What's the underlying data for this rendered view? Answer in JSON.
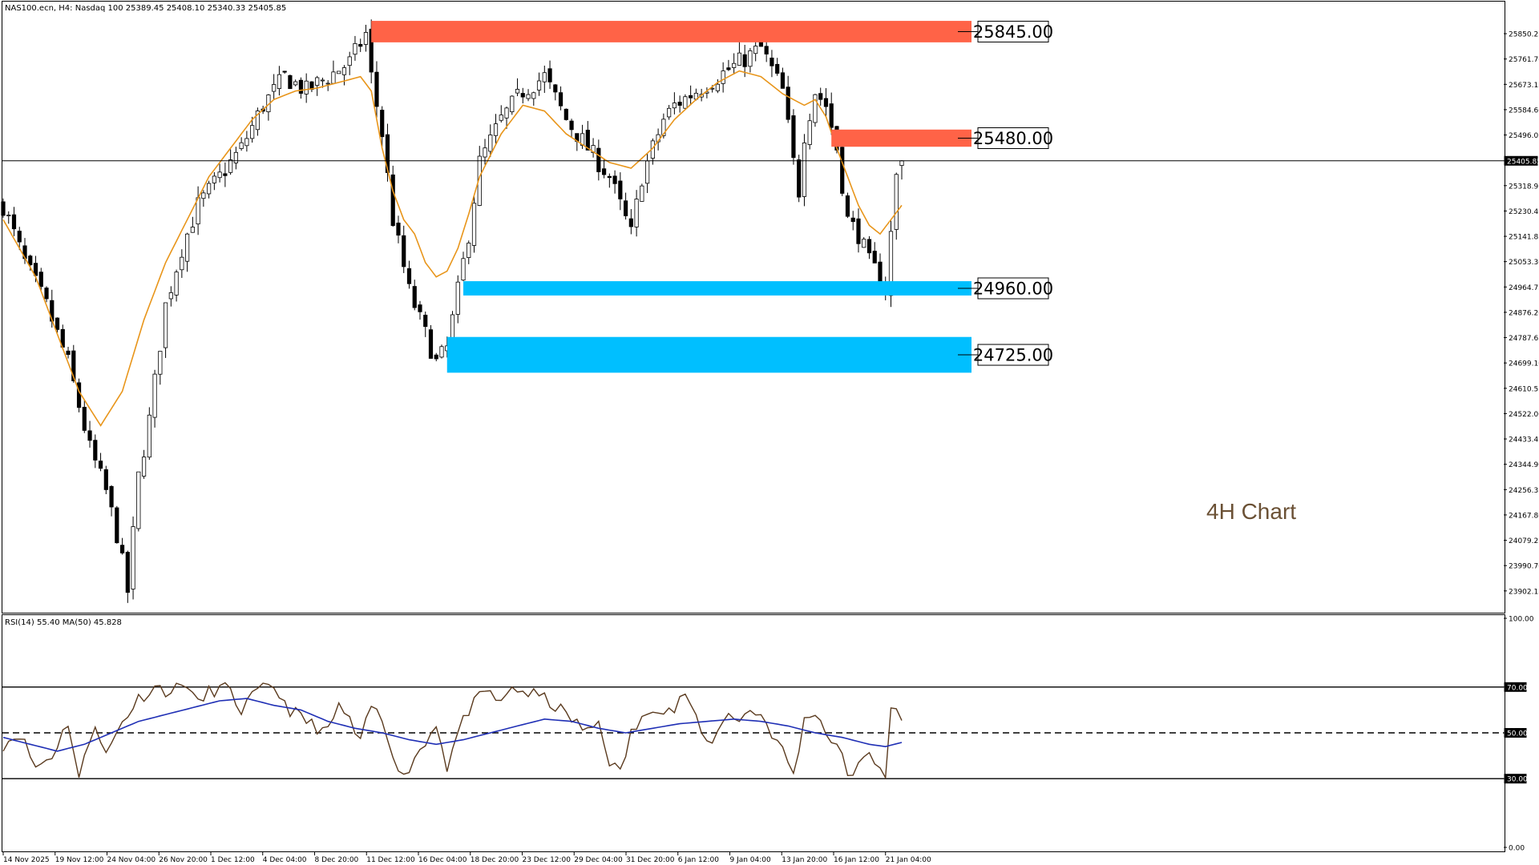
{
  "header": {
    "main_info": "NAS100.ecn, H4:  Nasdaq 100  25389.45 25408.10 25340.33 25405.85",
    "rsi_info": "RSI(14) 55.40 MA(50) 45.828"
  },
  "annotation": "4H Chart",
  "colors": {
    "candle": "#000000",
    "ma_price": "#e8951a",
    "rsi_line": "#5a3a1e",
    "rsi_ma": "#1f2fb5",
    "resistance_zone": "#ff6347",
    "support_zone": "#00bfff"
  },
  "chart_data": [
    {
      "type": "candlestick",
      "symbol": "NAS100.ecn",
      "timeframe": "H4",
      "title": "Nasdaq 100",
      "last_bar": {
        "open": 25389.45,
        "high": 25408.1,
        "low": 25340.33,
        "close": 25405.85
      },
      "current_price": 25405.85,
      "ylim": [
        23840,
        25940
      ],
      "y_ticks": [
        "25850.25",
        "25761.70",
        "25673.15",
        "25584.60",
        "25496.05",
        "25405.85",
        "25318.95",
        "25230.40",
        "25141.85",
        "25053.30",
        "24964.75",
        "24876.20",
        "24787.65",
        "24699.10",
        "24610.55",
        "24522.00",
        "24433.45",
        "24344.90",
        "24256.35",
        "24167.80",
        "24079.25",
        "23990.70",
        "23902.15"
      ],
      "x_ticks": [
        "14 Nov 2025",
        "19 Nov 12:00",
        "24 Nov 04:00",
        "26 Nov 20:00",
        "1 Dec 12:00",
        "4 Dec 04:00",
        "8 Dec 20:00",
        "11 Dec 12:00",
        "16 Dec 04:00",
        "18 Dec 20:00",
        "23 Dec 12:00",
        "29 Dec 04:00",
        "31 Dec 20:00",
        "6 Jan 12:00",
        "9 Jan 04:00",
        "13 Jan 20:00",
        "16 Jan 12:00",
        "21 Jan 04:00"
      ],
      "close_path": [
        [
          0,
          25250
        ],
        [
          4,
          25050
        ],
        [
          8,
          24900
        ],
        [
          12,
          24700
        ],
        [
          16,
          24400
        ],
        [
          19,
          24250
        ],
        [
          21,
          24100
        ],
        [
          23,
          23900
        ],
        [
          25,
          24300
        ],
        [
          27,
          24500
        ],
        [
          30,
          24900
        ],
        [
          33,
          25100
        ],
        [
          36,
          25250
        ],
        [
          40,
          25350
        ],
        [
          44,
          25450
        ],
        [
          48,
          25600
        ],
        [
          52,
          25700
        ],
        [
          56,
          25650
        ],
        [
          60,
          25700
        ],
        [
          64,
          25750
        ],
        [
          67,
          25850
        ],
        [
          68,
          25700
        ],
        [
          70,
          25500
        ],
        [
          72,
          25200
        ],
        [
          75,
          24950
        ],
        [
          78,
          24800
        ],
        [
          80,
          24700
        ],
        [
          82,
          24750
        ],
        [
          84,
          24950
        ],
        [
          86,
          25150
        ],
        [
          88,
          25400
        ],
        [
          92,
          25550
        ],
        [
          96,
          25650
        ],
        [
          100,
          25700
        ],
        [
          104,
          25550
        ],
        [
          108,
          25450
        ],
        [
          112,
          25350
        ],
        [
          114,
          25250
        ],
        [
          116,
          25150
        ],
        [
          118,
          25350
        ],
        [
          120,
          25450
        ],
        [
          122,
          25550
        ],
        [
          124,
          25600
        ],
        [
          128,
          25650
        ],
        [
          132,
          25700
        ],
        [
          136,
          25750
        ],
        [
          140,
          25800
        ],
        [
          144,
          25650
        ],
        [
          146,
          25400
        ],
        [
          147,
          25300
        ],
        [
          148,
          25500
        ],
        [
          150,
          25650
        ],
        [
          152,
          25600
        ],
        [
          154,
          25450
        ],
        [
          156,
          25200
        ],
        [
          158,
          25150
        ],
        [
          160,
          25050
        ],
        [
          162,
          25000
        ],
        [
          163,
          24960
        ],
        [
          164,
          25150
        ],
        [
          165,
          25350
        ],
        [
          166,
          25406
        ]
      ],
      "moving_average": [
        [
          0,
          25200
        ],
        [
          6,
          25000
        ],
        [
          10,
          24800
        ],
        [
          14,
          24600
        ],
        [
          18,
          24480
        ],
        [
          22,
          24600
        ],
        [
          26,
          24850
        ],
        [
          30,
          25050
        ],
        [
          34,
          25200
        ],
        [
          38,
          25350
        ],
        [
          42,
          25450
        ],
        [
          46,
          25550
        ],
        [
          50,
          25620
        ],
        [
          54,
          25650
        ],
        [
          58,
          25660
        ],
        [
          62,
          25680
        ],
        [
          66,
          25700
        ],
        [
          68,
          25650
        ],
        [
          70,
          25450
        ],
        [
          72,
          25300
        ],
        [
          74,
          25200
        ],
        [
          76,
          25150
        ],
        [
          78,
          25050
        ],
        [
          80,
          25000
        ],
        [
          82,
          25020
        ],
        [
          84,
          25100
        ],
        [
          86,
          25220
        ],
        [
          88,
          25350
        ],
        [
          92,
          25500
        ],
        [
          96,
          25600
        ],
        [
          100,
          25580
        ],
        [
          104,
          25500
        ],
        [
          108,
          25450
        ],
        [
          112,
          25400
        ],
        [
          116,
          25380
        ],
        [
          120,
          25450
        ],
        [
          124,
          25550
        ],
        [
          128,
          25620
        ],
        [
          132,
          25680
        ],
        [
          136,
          25720
        ],
        [
          140,
          25700
        ],
        [
          144,
          25640
        ],
        [
          148,
          25600
        ],
        [
          150,
          25620
        ],
        [
          152,
          25560
        ],
        [
          154,
          25450
        ],
        [
          156,
          25350
        ],
        [
          158,
          25250
        ],
        [
          160,
          25180
        ],
        [
          162,
          25150
        ],
        [
          164,
          25200
        ],
        [
          166,
          25250
        ]
      ],
      "zones": [
        {
          "kind": "resistance",
          "label": "25845.00",
          "y_low": 25820,
          "y_high": 25895,
          "x_from": 68
        },
        {
          "kind": "resistance",
          "label": "25480.00",
          "y_low": 25455,
          "y_high": 25515,
          "x_from": 153
        },
        {
          "kind": "support",
          "label": "24960.00",
          "y_low": 24935,
          "y_high": 24985,
          "x_from": 85
        },
        {
          "kind": "support",
          "label": "24725.00",
          "y_low": 24665,
          "y_high": 24790,
          "x_from": 82
        }
      ]
    },
    {
      "type": "line",
      "title": "RSI(14) 55.40 MA(50) 45.828",
      "ylim": [
        0,
        100
      ],
      "y_ticks": [
        "100.00",
        "70.00",
        "50.00",
        "30.00",
        "0.00"
      ],
      "levels": [
        70,
        50,
        30
      ],
      "series": [
        {
          "name": "RSI(14)",
          "last": 55.4,
          "values": [
            [
              0,
              45
            ],
            [
              3,
              50
            ],
            [
              6,
              35
            ],
            [
              9,
              40
            ],
            [
              12,
              55
            ],
            [
              14,
              30
            ],
            [
              17,
              55
            ],
            [
              19,
              40
            ],
            [
              22,
              55
            ],
            [
              25,
              65
            ],
            [
              28,
              70
            ],
            [
              31,
              68
            ],
            [
              34,
              72
            ],
            [
              36,
              62
            ],
            [
              38,
              68
            ],
            [
              41,
              70
            ],
            [
              44,
              60
            ],
            [
              47,
              68
            ],
            [
              50,
              70
            ],
            [
              53,
              60
            ],
            [
              56,
              55
            ],
            [
              60,
              50
            ],
            [
              62,
              62
            ],
            [
              64,
              55
            ],
            [
              66,
              45
            ],
            [
              68,
              62
            ],
            [
              70,
              55
            ],
            [
              72,
              42
            ],
            [
              74,
              30
            ],
            [
              76,
              40
            ],
            [
              78,
              45
            ],
            [
              80,
              55
            ],
            [
              82,
              35
            ],
            [
              84,
              50
            ],
            [
              86,
              60
            ],
            [
              88,
              65
            ],
            [
              90,
              68
            ],
            [
              92,
              62
            ],
            [
              94,
              70
            ],
            [
              96,
              68
            ],
            [
              100,
              65
            ],
            [
              104,
              58
            ],
            [
              108,
              50
            ],
            [
              110,
              55
            ],
            [
              112,
              38
            ],
            [
              114,
              32
            ],
            [
              116,
              50
            ],
            [
              118,
              55
            ],
            [
              120,
              62
            ],
            [
              124,
              60
            ],
            [
              126,
              68
            ],
            [
              128,
              55
            ],
            [
              130,
              45
            ],
            [
              132,
              50
            ],
            [
              134,
              60
            ],
            [
              136,
              55
            ],
            [
              138,
              60
            ],
            [
              140,
              58
            ],
            [
              142,
              50
            ],
            [
              144,
              42
            ],
            [
              146,
              32
            ],
            [
              148,
              55
            ],
            [
              150,
              60
            ],
            [
              152,
              50
            ],
            [
              154,
              45
            ],
            [
              156,
              32
            ],
            [
              158,
              35
            ],
            [
              160,
              40
            ],
            [
              162,
              36
            ],
            [
              163,
              32
            ],
            [
              164,
              62
            ],
            [
              165,
              58
            ],
            [
              166,
              55.4
            ]
          ]
        },
        {
          "name": "MA(50)",
          "last": 45.828,
          "values": [
            [
              0,
              48
            ],
            [
              5,
              45
            ],
            [
              10,
              42
            ],
            [
              15,
              45
            ],
            [
              20,
              50
            ],
            [
              25,
              55
            ],
            [
              30,
              58
            ],
            [
              35,
              61
            ],
            [
              40,
              64
            ],
            [
              45,
              65
            ],
            [
              50,
              62
            ],
            [
              55,
              60
            ],
            [
              60,
              55
            ],
            [
              65,
              52
            ],
            [
              70,
              50
            ],
            [
              75,
              47
            ],
            [
              80,
              45
            ],
            [
              85,
              47
            ],
            [
              90,
              50
            ],
            [
              95,
              53
            ],
            [
              100,
              56
            ],
            [
              105,
              55
            ],
            [
              110,
              52
            ],
            [
              115,
              50
            ],
            [
              120,
              52
            ],
            [
              125,
              54
            ],
            [
              130,
              55
            ],
            [
              135,
              56
            ],
            [
              140,
              55
            ],
            [
              145,
              53
            ],
            [
              150,
              50
            ],
            [
              155,
              48
            ],
            [
              160,
              45
            ],
            [
              163,
              44
            ],
            [
              166,
              45.8
            ]
          ]
        }
      ]
    }
  ]
}
